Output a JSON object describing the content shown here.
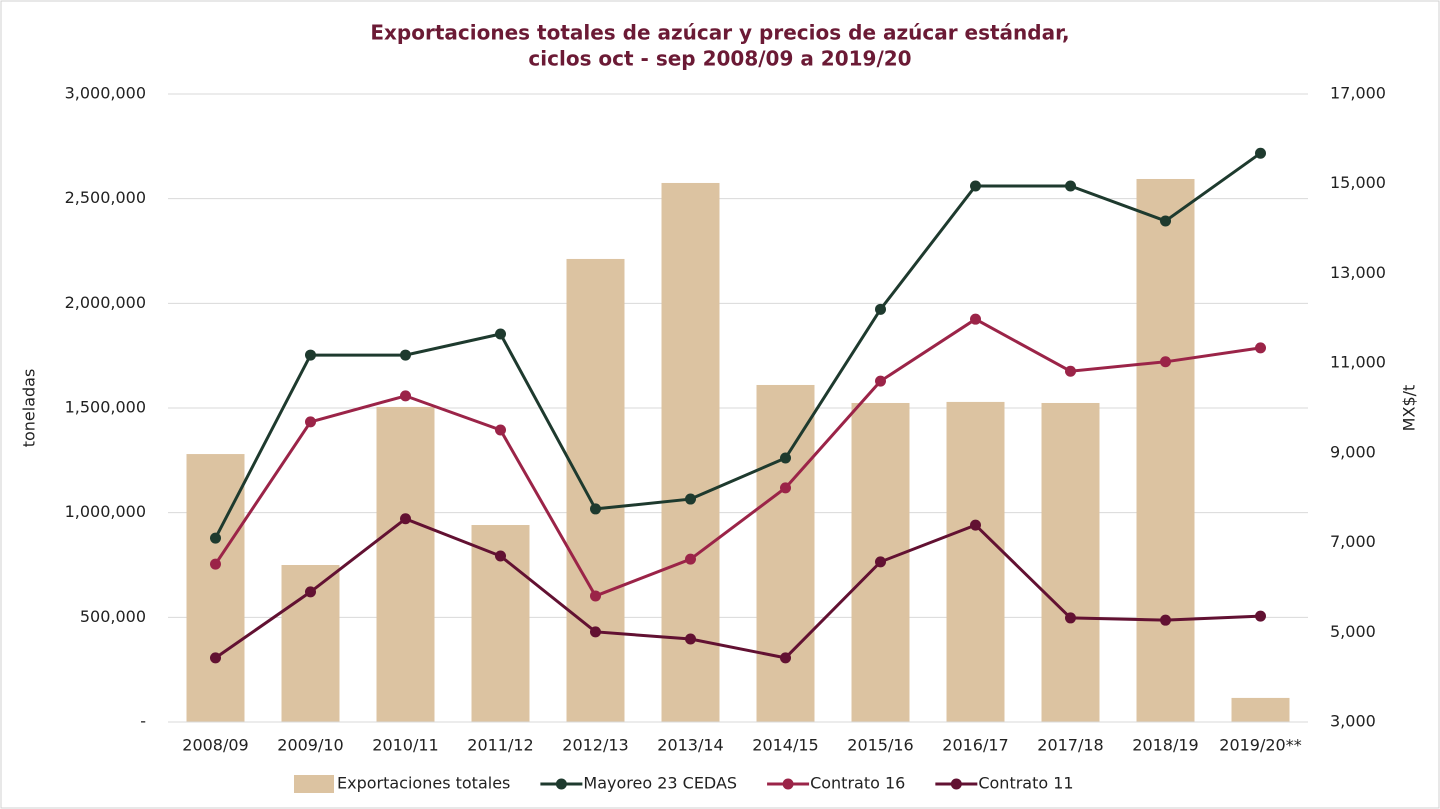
{
  "chart_data": {
    "type": "bar",
    "title": [
      "Exportaciones totales de azúcar y precios de azúcar estándar,",
      "ciclos oct - sep 2008/09 a 2019/20"
    ],
    "y_label": "toneladas",
    "y2_label": "MX$/t",
    "categories": [
      "2008/09",
      "2009/10",
      "2010/11",
      "2011/12",
      "2012/13",
      "2013/14",
      "2014/15",
      "2015/16",
      "2016/17",
      "2017/18",
      "2018/19",
      "2019/20**"
    ],
    "series": [
      {
        "name": "Exportaciones totales",
        "type": "bar",
        "color": "#dcc3a1",
        "values": [
          1280000,
          750000,
          1505000,
          941000,
          2212000,
          2575000,
          1610000,
          1524000,
          1529000,
          1524000,
          2594000,
          115000
        ]
      },
      {
        "name": "Mayoreo 23 CEDAS",
        "type": "line",
        "axis": "y2",
        "color": "#1e3a2e",
        "values": [
          7100,
          11180,
          11180,
          11650,
          7750,
          7970,
          8885,
          12200,
          14950,
          14950,
          14170,
          15680
        ]
      },
      {
        "name": "Contrato 16",
        "type": "line",
        "axis": "y2",
        "color": "#9b2448",
        "values": [
          6520,
          9690,
          10270,
          9510,
          5810,
          6630,
          8220,
          10600,
          11980,
          10820,
          11030,
          11340
        ]
      },
      {
        "name": "Contrato 11",
        "type": "line",
        "axis": "y2",
        "color": "#621132",
        "values": [
          4430,
          5900,
          7530,
          6700,
          5010,
          4850,
          4430,
          6570,
          7390,
          5320,
          5270,
          5360
        ]
      }
    ],
    "ylim": [
      0,
      3000000
    ],
    "yticks": [
      {
        "value": 0,
        "label": "-"
      },
      {
        "value": 500000,
        "label": "500,000"
      },
      {
        "value": 1000000,
        "label": "1,000,000"
      },
      {
        "value": 1500000,
        "label": "1,500,000"
      },
      {
        "value": 2000000,
        "label": "2,000,000"
      },
      {
        "value": 2500000,
        "label": "2,500,000"
      },
      {
        "value": 3000000,
        "label": "3,000,000"
      }
    ],
    "y2lim": [
      3000,
      17000
    ],
    "y2ticks": [
      {
        "value": 3000,
        "label": "3,000"
      },
      {
        "value": 5000,
        "label": "5,000"
      },
      {
        "value": 7000,
        "label": "7,000"
      },
      {
        "value": 9000,
        "label": "9,000"
      },
      {
        "value": 11000,
        "label": "11,000"
      },
      {
        "value": 13000,
        "label": "13,000"
      },
      {
        "value": 15000,
        "label": "15,000"
      },
      {
        "value": 17000,
        "label": "17,000"
      }
    ],
    "grid": true,
    "legend": "bottom"
  }
}
